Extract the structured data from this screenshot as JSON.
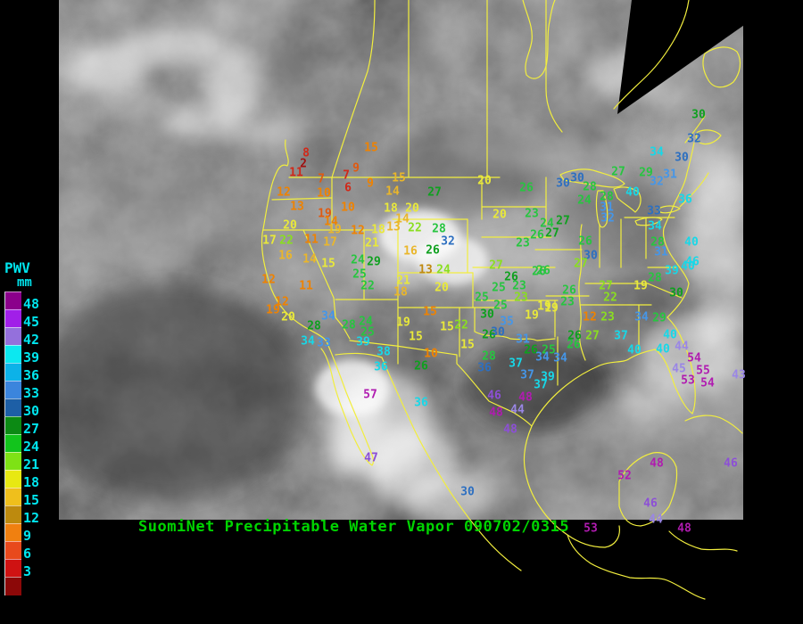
{
  "title": {
    "text": "SuomiNet Precipitable Water Vapor 090702/0315",
    "color": "#00d400"
  },
  "legend": {
    "title": "PWV",
    "unit": "mm",
    "text_color": "#00e5ee",
    "entries": [
      {
        "value": "48",
        "color": "#8b008b"
      },
      {
        "value": "45",
        "color": "#a11fe8"
      },
      {
        "value": "42",
        "color": "#9470dc"
      },
      {
        "value": "39",
        "color": "#0ce8f0"
      },
      {
        "value": "36",
        "color": "#0cb2e8"
      },
      {
        "value": "33",
        "color": "#3b85dd"
      },
      {
        "value": "30",
        "color": "#1d5fa6"
      },
      {
        "value": "27",
        "color": "#0c8a14"
      },
      {
        "value": "24",
        "color": "#12c41c"
      },
      {
        "value": "21",
        "color": "#7ee215"
      },
      {
        "value": "18",
        "color": "#e8e812"
      },
      {
        "value": "15",
        "color": "#efbf1c"
      },
      {
        "value": "12",
        "color": "#bd8a0e"
      },
      {
        "value": "9",
        "color": "#f08010"
      },
      {
        "value": "6",
        "color": "#e8491c"
      },
      {
        "value": "3",
        "color": "#cf1212"
      }
    ],
    "extra_swatch_color": "#8c0808"
  },
  "map": {
    "outline_color": "#f2ee3e",
    "palette": {
      "darkred": "#a01010",
      "red": "#d02818",
      "orangered": "#e05a10",
      "orange": "#ef8200",
      "darkgold": "#c08a10",
      "gold": "#eab62a",
      "yellow": "#e9e93a",
      "chartreuse": "#8ade20",
      "green": "#27c540",
      "darkgreen": "#0ea01e",
      "steelblue": "#2d6fc0",
      "skyblue": "#4596e8",
      "cyan": "#17d8e8",
      "lightpurple": "#9a86e6",
      "purple": "#8c4fd6",
      "magenta": "#b01bb0"
    },
    "stations": [
      [
        "15",
        416,
        166,
        "orange"
      ],
      [
        "8",
        343,
        172,
        "red"
      ],
      [
        "2",
        340,
        184,
        "darkred"
      ],
      [
        "11",
        332,
        194,
        "red"
      ],
      [
        "9",
        399,
        189,
        "orangered"
      ],
      [
        "7",
        360,
        201,
        "orangered"
      ],
      [
        "7",
        388,
        197,
        "red"
      ],
      [
        "6",
        390,
        211,
        "red"
      ],
      [
        "9",
        415,
        206,
        "orange"
      ],
      [
        "15",
        447,
        200,
        "gold"
      ],
      [
        "12",
        318,
        216,
        "orange"
      ],
      [
        "10",
        363,
        217,
        "orange"
      ],
      [
        "14",
        440,
        215,
        "gold"
      ],
      [
        "27",
        487,
        216,
        "darkgreen"
      ],
      [
        "13",
        333,
        232,
        "orange"
      ],
      [
        "10",
        390,
        233,
        "orange"
      ],
      [
        "18",
        438,
        234,
        "yellow"
      ],
      [
        "20",
        462,
        234,
        "yellow"
      ],
      [
        "19",
        364,
        240,
        "orangered"
      ],
      [
        "14",
        371,
        249,
        "orange"
      ],
      [
        "14",
        451,
        246,
        "gold"
      ],
      [
        "20",
        325,
        253,
        "yellow"
      ],
      [
        "13",
        441,
        255,
        "gold"
      ],
      [
        "22",
        465,
        256,
        "chartreuse"
      ],
      [
        "28",
        492,
        257,
        "green"
      ],
      [
        "19",
        375,
        258,
        "gold"
      ],
      [
        "12",
        401,
        259,
        "orange"
      ],
      [
        "18",
        424,
        258,
        "yellow"
      ],
      [
        "32",
        502,
        271,
        "steelblue"
      ],
      [
        "17",
        302,
        270,
        "yellow"
      ],
      [
        "22",
        321,
        270,
        "chartreuse"
      ],
      [
        "11",
        349,
        269,
        "orange"
      ],
      [
        "17",
        370,
        272,
        "gold"
      ],
      [
        "21",
        417,
        273,
        "yellow"
      ],
      [
        "16",
        320,
        287,
        "gold"
      ],
      [
        "14",
        347,
        291,
        "gold"
      ],
      [
        "15",
        368,
        296,
        "yellow"
      ],
      [
        "24",
        401,
        292,
        "green"
      ],
      [
        "29",
        419,
        294,
        "darkgreen"
      ],
      [
        "16",
        460,
        282,
        "gold"
      ],
      [
        "26",
        485,
        281,
        "darkgreen"
      ],
      [
        "13",
        477,
        303,
        "darkgold"
      ],
      [
        "24",
        497,
        303,
        "chartreuse"
      ],
      [
        "12",
        301,
        314,
        "orange"
      ],
      [
        "11",
        343,
        321,
        "orange"
      ],
      [
        "25",
        403,
        308,
        "green"
      ],
      [
        "22",
        412,
        321,
        "green"
      ],
      [
        "21",
        452,
        315,
        "yellow"
      ],
      [
        "18",
        449,
        328,
        "gold"
      ],
      [
        "20",
        495,
        323,
        "yellow"
      ],
      [
        "12",
        316,
        339,
        "orange"
      ],
      [
        "19",
        306,
        348,
        "orange"
      ],
      [
        "20",
        323,
        356,
        "yellow"
      ],
      [
        "34",
        368,
        355,
        "skyblue"
      ],
      [
        "28",
        352,
        366,
        "darkgreen"
      ],
      [
        "28",
        391,
        365,
        "green"
      ],
      [
        "24",
        410,
        361,
        "green"
      ],
      [
        "25",
        412,
        373,
        "green"
      ],
      [
        "19",
        452,
        362,
        "yellow"
      ],
      [
        "34",
        345,
        383,
        "cyan"
      ],
      [
        "33",
        363,
        385,
        "skyblue"
      ],
      [
        "39",
        407,
        384,
        "cyan"
      ],
      [
        "38",
        430,
        395,
        "cyan"
      ],
      [
        "36",
        427,
        412,
        "cyan"
      ],
      [
        "20",
        543,
        203,
        "yellow"
      ],
      [
        "26",
        590,
        211,
        "green"
      ],
      [
        "30",
        631,
        206,
        "steelblue"
      ],
      [
        "30",
        647,
        200,
        "steelblue"
      ],
      [
        "28",
        661,
        210,
        "green"
      ],
      [
        "27",
        693,
        193,
        "green"
      ],
      [
        "29",
        724,
        194,
        "green"
      ],
      [
        "31",
        751,
        196,
        "skyblue"
      ],
      [
        "32",
        736,
        204,
        "skyblue"
      ],
      [
        "20",
        560,
        241,
        "yellow"
      ],
      [
        "23",
        596,
        240,
        "green"
      ],
      [
        "24",
        613,
        251,
        "green"
      ],
      [
        "27",
        631,
        248,
        "darkgreen"
      ],
      [
        "24",
        655,
        225,
        "green"
      ],
      [
        "28",
        680,
        221,
        "green"
      ],
      [
        "40",
        709,
        216,
        "cyan"
      ],
      [
        "31",
        680,
        233,
        "skyblue"
      ],
      [
        "32",
        681,
        245,
        "skyblue"
      ],
      [
        "26",
        602,
        264,
        "green"
      ],
      [
        "27",
        619,
        262,
        "darkgreen"
      ],
      [
        "23",
        586,
        273,
        "green"
      ],
      [
        "26",
        656,
        271,
        "green"
      ],
      [
        "30",
        662,
        287,
        "steelblue"
      ],
      [
        "27",
        556,
        298,
        "chartreuse"
      ],
      [
        "26",
        573,
        311,
        "darkgreen"
      ],
      [
        "26",
        604,
        305,
        "green"
      ],
      [
        "25",
        559,
        323,
        "green"
      ],
      [
        "23",
        582,
        321,
        "green"
      ],
      [
        "25",
        540,
        334,
        "green"
      ],
      [
        "23",
        584,
        334,
        "chartreuse"
      ],
      [
        "25",
        561,
        343,
        "green"
      ],
      [
        "30",
        546,
        353,
        "darkgreen"
      ],
      [
        "35",
        568,
        361,
        "skyblue"
      ],
      [
        "19",
        596,
        354,
        "yellow"
      ],
      [
        "19",
        618,
        346,
        "yellow"
      ],
      [
        "15",
        482,
        350,
        "orange"
      ],
      [
        "15",
        466,
        378,
        "yellow"
      ],
      [
        "15",
        501,
        367,
        "yellow"
      ],
      [
        "22",
        517,
        365,
        "chartreuse"
      ],
      [
        "26",
        548,
        376,
        "darkgreen"
      ],
      [
        "15",
        524,
        387,
        "yellow"
      ],
      [
        "10",
        483,
        397,
        "orange"
      ],
      [
        "26",
        472,
        411,
        "darkgreen"
      ],
      [
        "28",
        548,
        400,
        "green"
      ],
      [
        "36",
        543,
        413,
        "steelblue"
      ],
      [
        "30",
        558,
        373,
        "steelblue"
      ],
      [
        "31",
        586,
        381,
        "skyblue"
      ],
      [
        "30",
        783,
        129,
        "darkgreen"
      ],
      [
        "32",
        778,
        156,
        "steelblue"
      ],
      [
        "34",
        736,
        171,
        "cyan"
      ],
      [
        "30",
        764,
        177,
        "steelblue"
      ],
      [
        "36",
        768,
        224,
        "cyan"
      ],
      [
        "33",
        733,
        237,
        "steelblue"
      ],
      [
        "34",
        734,
        254,
        "cyan"
      ],
      [
        "28",
        737,
        272,
        "green"
      ],
      [
        "40",
        775,
        272,
        "cyan"
      ],
      [
        "31",
        741,
        283,
        "skyblue"
      ],
      [
        "46",
        776,
        294,
        "cyan"
      ],
      [
        "39",
        753,
        304,
        "cyan"
      ],
      [
        "28",
        734,
        312,
        "green"
      ],
      [
        "26",
        609,
        304,
        "green"
      ],
      [
        "27",
        651,
        296,
        "chartreuse"
      ],
      [
        "40",
        771,
        299,
        "cyan"
      ],
      [
        "27",
        679,
        321,
        "chartreuse"
      ],
      [
        "19",
        718,
        321,
        "yellow"
      ],
      [
        "30",
        758,
        329,
        "darkgreen"
      ],
      [
        "26",
        638,
        326,
        "green"
      ],
      [
        "22",
        684,
        334,
        "chartreuse"
      ],
      [
        "23",
        636,
        339,
        "green"
      ],
      [
        "19",
        610,
        344,
        "yellow"
      ],
      [
        "12",
        661,
        356,
        "orange"
      ],
      [
        "23",
        681,
        356,
        "chartreuse"
      ],
      [
        "34",
        719,
        356,
        "skyblue"
      ],
      [
        "29",
        739,
        357,
        "green"
      ],
      [
        "26",
        644,
        377,
        "darkgreen"
      ],
      [
        "27",
        664,
        377,
        "chartreuse"
      ],
      [
        "37",
        696,
        377,
        "cyan"
      ],
      [
        "40",
        751,
        376,
        "cyan"
      ],
      [
        "40",
        711,
        393,
        "cyan"
      ],
      [
        "40",
        743,
        392,
        "cyan"
      ],
      [
        "44",
        764,
        389,
        "lightpurple"
      ],
      [
        "54",
        778,
        402,
        "magenta"
      ],
      [
        "45",
        761,
        414,
        "lightpurple"
      ],
      [
        "55",
        788,
        416,
        "magenta"
      ],
      [
        "53",
        771,
        427,
        "magenta"
      ],
      [
        "54",
        793,
        430,
        "magenta"
      ],
      [
        "43",
        828,
        421,
        "lightpurple"
      ],
      [
        "26",
        595,
        393,
        "darkgreen"
      ],
      [
        "25",
        615,
        393,
        "green"
      ],
      [
        "26",
        643,
        387,
        "green"
      ],
      [
        "34",
        608,
        401,
        "skyblue"
      ],
      [
        "34",
        628,
        402,
        "skyblue"
      ],
      [
        "37",
        578,
        408,
        "cyan"
      ],
      [
        "37",
        591,
        421,
        "skyblue"
      ],
      [
        "39",
        614,
        423,
        "cyan"
      ],
      [
        "37",
        606,
        432,
        "cyan"
      ],
      [
        "46",
        554,
        444,
        "purple"
      ],
      [
        "48",
        589,
        446,
        "magenta"
      ],
      [
        "36",
        472,
        452,
        "cyan"
      ],
      [
        "57",
        415,
        443,
        "magenta"
      ],
      [
        "48",
        556,
        463,
        "magenta"
      ],
      [
        "44",
        580,
        460,
        "lightpurple"
      ],
      [
        "48",
        572,
        482,
        "purple"
      ],
      [
        "47",
        416,
        514,
        "purple"
      ],
      [
        "30",
        524,
        552,
        "steelblue"
      ],
      [
        "48",
        736,
        520,
        "magenta"
      ],
      [
        "52",
        700,
        534,
        "magenta"
      ],
      [
        "46",
        819,
        520,
        "purple"
      ],
      [
        "46",
        729,
        565,
        "purple"
      ],
      [
        "44",
        735,
        583,
        "lightpurple"
      ],
      [
        "53",
        662,
        593,
        "magenta"
      ],
      [
        "48",
        767,
        593,
        "magenta"
      ]
    ]
  }
}
